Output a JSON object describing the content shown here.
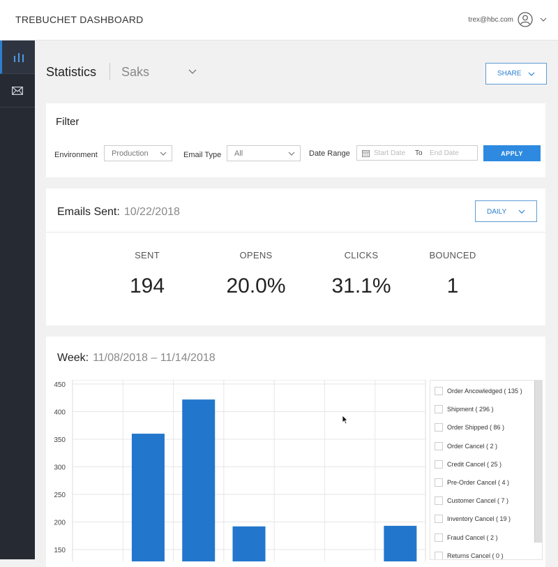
{
  "header": {
    "app_title": "TREBUCHET DASHBOARD",
    "user_email": "trex@hbc.com"
  },
  "sidebar": {
    "items": [
      {
        "name": "stats",
        "icon": "bar-chart-icon",
        "active": true
      },
      {
        "name": "email",
        "icon": "envelope-icon",
        "active": false
      }
    ]
  },
  "page": {
    "title": "Statistics",
    "brand": "Saks",
    "share_label": "SHARE"
  },
  "filter": {
    "title": "Filter",
    "environment_label": "Environment",
    "environment_value": "Production",
    "email_type_label": "Email Type",
    "email_type_value": "All",
    "date_range_label": "Date Range",
    "start_placeholder": "Start Date",
    "to_label": "To",
    "end_placeholder": "End Date",
    "apply_label": "APPLY"
  },
  "emails_sent": {
    "title": "Emails Sent:",
    "date": "10/22/2018",
    "period_label": "DAILY",
    "stats": [
      {
        "label": "SENT",
        "value": "194"
      },
      {
        "label": "OPENS",
        "value": "20.0%"
      },
      {
        "label": "CLICKS",
        "value": "31.1%"
      },
      {
        "label": "BOUNCED",
        "value": "1"
      }
    ]
  },
  "week": {
    "title": "Week:",
    "range": "11/08/2018 – 11/14/2018"
  },
  "chart_data": {
    "type": "bar",
    "title": "",
    "ylim": [
      150,
      450
    ],
    "y_ticks": [
      150,
      200,
      250,
      300,
      350,
      400,
      450
    ],
    "grid": true,
    "bar_color": "#2277cc",
    "num_columns": 7,
    "series": [
      {
        "values": [
          null,
          360,
          422,
          192,
          null,
          null,
          193
        ]
      }
    ],
    "legend": [
      "Order Ancowledged ( 135 )",
      "Shipment ( 296 )",
      "Order Shipped ( 86 )",
      "Order Cancel ( 2 )",
      "Credit Cancel ( 25 )",
      "Pre-Order Cancel ( 4 )",
      "Customer Cancel ( 7 )",
      "Inventory Cancel ( 19 )",
      "Fraud Cancel ( 2 )",
      "Returns Cancel ( 0 )"
    ]
  }
}
